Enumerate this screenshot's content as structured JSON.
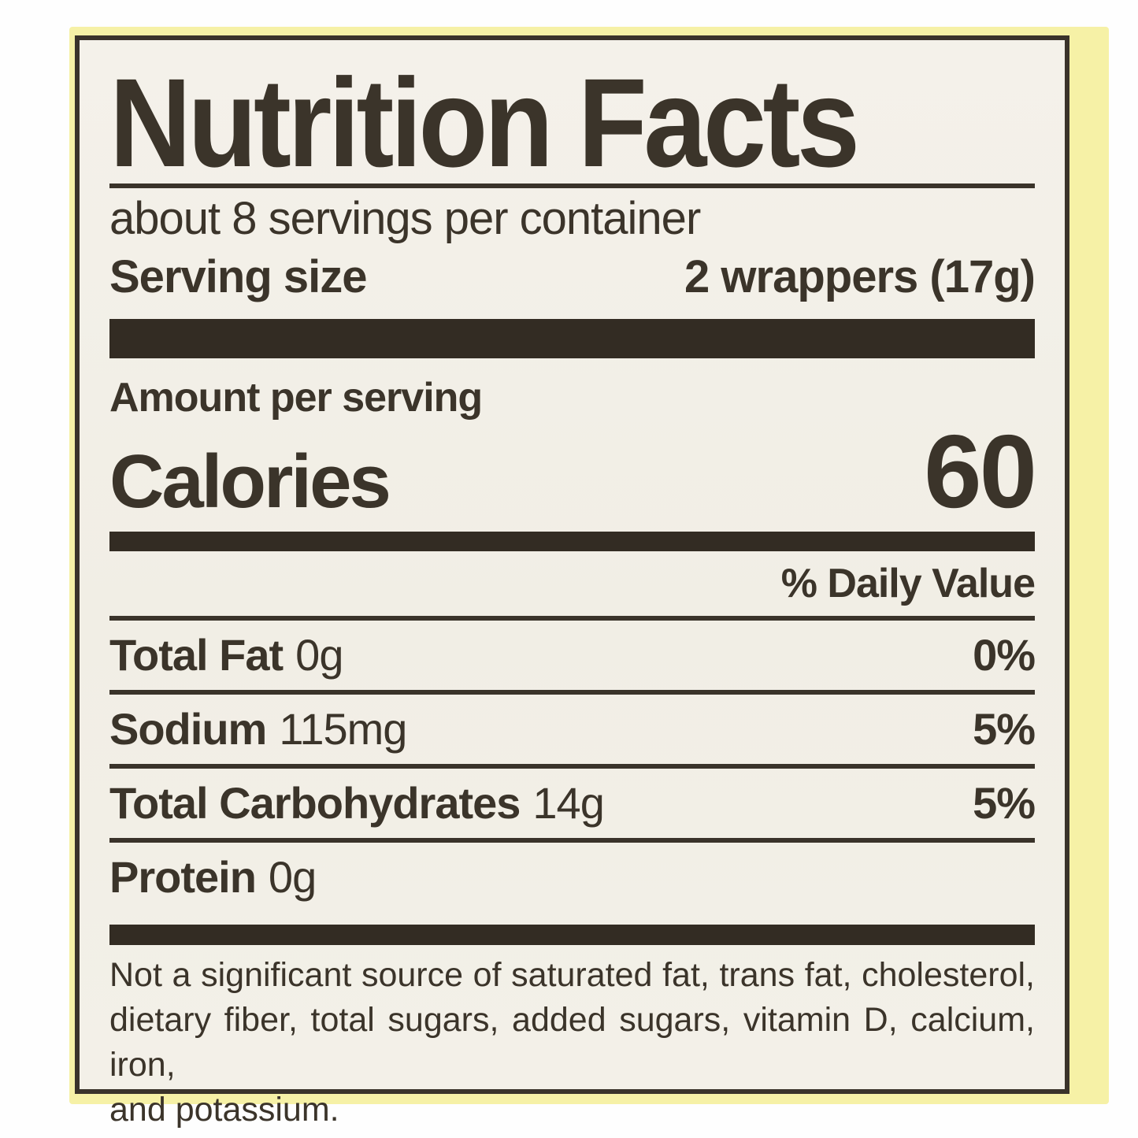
{
  "label": {
    "title": "Nutrition Facts",
    "servings_per_container": "about 8 servings per container",
    "serving_size_label": "Serving size",
    "serving_size_value": "2 wrappers (17g)",
    "amount_per_serving": "Amount per serving",
    "calories_label": "Calories",
    "calories_value": "60",
    "daily_value_header": "% Daily Value",
    "rows": [
      {
        "name": "Total Fat",
        "amount": "0g",
        "dv": "0%"
      },
      {
        "name": "Sodium",
        "amount": "115mg",
        "dv": "5%"
      },
      {
        "name": "Total Carbohydrates",
        "amount": "14g",
        "dv": "5%"
      },
      {
        "name": "Protein",
        "amount": "0g",
        "dv": ""
      }
    ],
    "footnote_lines": [
      "Not a significant source of saturated fat, trans fat, cholesterol,",
      "dietary fiber, total sugars, added sugars, vitamin D, calcium, iron,",
      "and potassium."
    ]
  },
  "colors": {
    "ink": "#3b342a",
    "bar_fill": "#332c23",
    "label_background": "#f2efe6",
    "packaging_yellow": "#f6f1a6",
    "page_background": "#fefefe"
  }
}
